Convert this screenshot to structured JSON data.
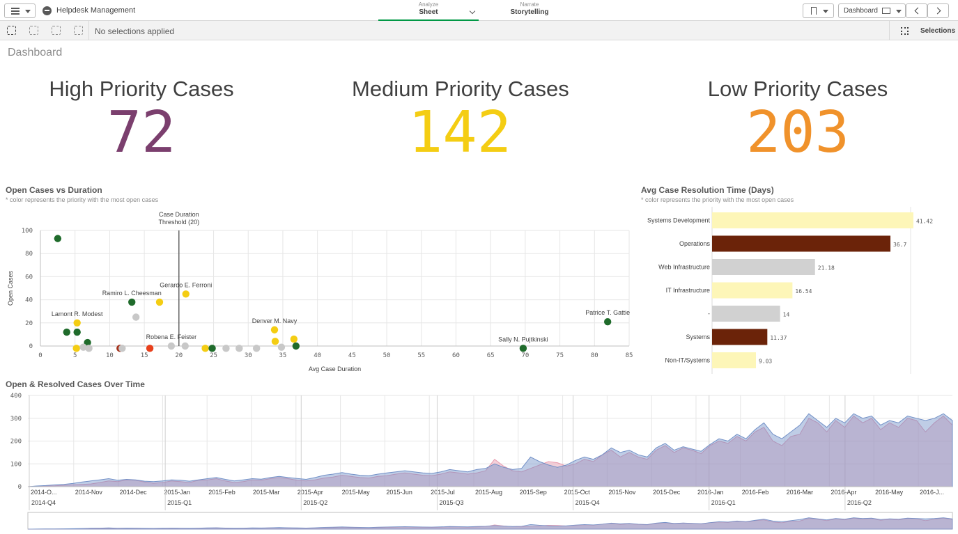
{
  "header": {
    "app_title": "Helpdesk Management",
    "tabs": [
      {
        "sub": "Analyze",
        "label": "Sheet"
      },
      {
        "sub": "Narrate",
        "label": "Storytelling"
      }
    ],
    "sheet_label": "Dashboard",
    "icons": [
      "hamburger-icon",
      "app-icon",
      "chevron-down-icon",
      "bookmark-icon",
      "screen-icon",
      "chevron-left-icon",
      "chevron-right-icon"
    ]
  },
  "selection_bar": {
    "status": "No selections applied",
    "selections_label": "Selections"
  },
  "sheet": {
    "title": "Dashboard"
  },
  "kpis": [
    {
      "title": "High Priority Cases",
      "value": "72",
      "color": "#7b3f6e"
    },
    {
      "title": "Medium Priority Cases",
      "value": "142",
      "color": "#f4cd13"
    },
    {
      "title": "Low Priority Cases",
      "value": "203",
      "color": "#f0922b"
    }
  ],
  "scatter_panel": {
    "title": "Open Cases vs Duration",
    "subtitle": "* color represents the priority with the most open cases"
  },
  "bar_panel": {
    "title": "Avg Case Resolution Time (Days)",
    "subtitle": "* color represents the priority with the most open cases"
  },
  "line_panel": {
    "title": "Open & Resolved Cases Over Time"
  },
  "chart_data": [
    {
      "type": "scatter",
      "xlabel": "Avg Case Duration",
      "ylabel": "Open Cases",
      "xlim": [
        0,
        85
      ],
      "ylim": [
        0,
        100
      ],
      "xticks": [
        0,
        5,
        10,
        15,
        20,
        25,
        30,
        35,
        40,
        45,
        50,
        55,
        60,
        65,
        70,
        75,
        80,
        85
      ],
      "yticks": [
        0,
        20,
        40,
        60,
        80,
        100
      ],
      "reference_line": {
        "x": 20,
        "label_lines": [
          "Case Duration",
          "Threshold (20)"
        ]
      },
      "points": [
        {
          "x": 2.5,
          "y": 93,
          "color": "#1f6b2b"
        },
        {
          "x": 3.8,
          "y": 12,
          "color": "#1f6b2b"
        },
        {
          "x": 5.3,
          "y": 20,
          "color": "#f4cd13",
          "label": "Lamont R. Modest"
        },
        {
          "x": 5.3,
          "y": 12,
          "color": "#1f6b2b"
        },
        {
          "x": 6.8,
          "y": 3,
          "color": "#1f6b2b"
        },
        {
          "x": 5.2,
          "y": -2,
          "color": "#f4cd13"
        },
        {
          "x": 6.2,
          "y": -1,
          "color": "#c8c8c8"
        },
        {
          "x": 7.0,
          "y": -2,
          "color": "#c8c8c8"
        },
        {
          "x": 11.5,
          "y": -2,
          "color": "#a5311a"
        },
        {
          "x": 11.8,
          "y": -2,
          "color": "#c8c8c8"
        },
        {
          "x": 13.2,
          "y": 38,
          "color": "#1f6b2b",
          "label": "Ramiro L. Cheesman"
        },
        {
          "x": 13.8,
          "y": 25,
          "color": "#c8c8c8"
        },
        {
          "x": 15.8,
          "y": -2,
          "color": "#e8401c"
        },
        {
          "x": 17.2,
          "y": 38,
          "color": "#f4cd13"
        },
        {
          "x": 18.9,
          "y": 0,
          "color": "#c8c8c8",
          "label": "Robena E. Feister"
        },
        {
          "x": 21.0,
          "y": 45,
          "color": "#f4cd13",
          "label": "Gerardo E. Ferroni"
        },
        {
          "x": 20.9,
          "y": 0,
          "color": "#c8c8c8"
        },
        {
          "x": 23.8,
          "y": -2,
          "color": "#f4cd13"
        },
        {
          "x": 24.8,
          "y": -2,
          "color": "#1f6b2b"
        },
        {
          "x": 26.8,
          "y": -2,
          "color": "#c8c8c8"
        },
        {
          "x": 28.7,
          "y": -2,
          "color": "#c8c8c8"
        },
        {
          "x": 31.2,
          "y": -2,
          "color": "#c8c8c8"
        },
        {
          "x": 33.8,
          "y": 14,
          "color": "#f4cd13",
          "label": "Denver M. Navy"
        },
        {
          "x": 33.9,
          "y": 4,
          "color": "#f4cd13"
        },
        {
          "x": 34.8,
          "y": -1,
          "color": "#c8c8c8"
        },
        {
          "x": 36.6,
          "y": 6,
          "color": "#f4cd13"
        },
        {
          "x": 36.9,
          "y": 0,
          "color": "#1f6b2b"
        },
        {
          "x": 69.7,
          "y": -2,
          "color": "#1f6b2b",
          "label": "Sally N. Pujtkinski"
        },
        {
          "x": 81.9,
          "y": 21,
          "color": "#1f6b2b",
          "label": "Patrice T. Gattie"
        }
      ]
    },
    {
      "type": "bar",
      "orientation": "horizontal",
      "categories": [
        "Systems Development",
        "Operations",
        "Web Infrastructure",
        "IT Infrastructure",
        "-",
        "Systems",
        "Non-IT/Systems"
      ],
      "values": [
        41.42,
        36.7,
        21.18,
        16.54,
        14,
        11.37,
        9.03
      ],
      "value_labels": [
        "41.42",
        "36.7",
        "21.18",
        "16.54",
        "14",
        "11.37",
        "9.03"
      ],
      "colors": [
        "#fdf6b8",
        "#6b2309",
        "#d1d1d1",
        "#fdf6b8",
        "#d1d1d1",
        "#6b2309",
        "#fdf6b8"
      ],
      "xlim": [
        0,
        42
      ]
    },
    {
      "type": "area",
      "ylim": [
        0,
        400
      ],
      "yticks": [
        0,
        100,
        200,
        300,
        400
      ],
      "xticks": [
        "2014-O...",
        "2014-Nov",
        "2014-Dec",
        "2015-Jan",
        "2015-Feb",
        "2015-Mar",
        "2015-Apr",
        "2015-May",
        "2015-Jun",
        "2015-Jul",
        "2015-Aug",
        "2015-Sep",
        "2015-Oct",
        "2015-Nov",
        "2015-Dec",
        "2016-Jan",
        "2016-Feb",
        "2016-Mar",
        "2016-Apr",
        "2016-May",
        "2016-J..."
      ],
      "quarters": [
        "2014-Q4",
        "2015-Q1",
        "2015-Q2",
        "2015-Q3",
        "2015-Q4",
        "2016-Q1",
        "2016-Q2"
      ],
      "series": [
        {
          "color": "#e89aae",
          "values": [
            0,
            2,
            3,
            4,
            6,
            8,
            10,
            12,
            18,
            25,
            22,
            30,
            28,
            20,
            15,
            18,
            25,
            22,
            18,
            28,
            30,
            35,
            25,
            18,
            22,
            30,
            28,
            35,
            40,
            35,
            28,
            25,
            30,
            38,
            42,
            50,
            45,
            40,
            38,
            45,
            48,
            55,
            60,
            55,
            50,
            48,
            55,
            65,
            60,
            55,
            60,
            70,
            120,
            90,
            70,
            65,
            80,
            95,
            110,
            105,
            90,
            100,
            120,
            110,
            140,
            160,
            130,
            150,
            130,
            120,
            160,
            180,
            150,
            170,
            160,
            145,
            180,
            200,
            190,
            220,
            200,
            240,
            260,
            200,
            180,
            220,
            230,
            300,
            280,
            240,
            290,
            260,
            310,
            280,
            300,
            250,
            280,
            260,
            300,
            290,
            240,
            280,
            310,
            270
          ]
        },
        {
          "color": "#7290c7",
          "values": [
            0,
            3,
            5,
            8,
            10,
            14,
            20,
            25,
            30,
            35,
            28,
            32,
            30,
            24,
            22,
            25,
            30,
            28,
            24,
            30,
            35,
            40,
            32,
            25,
            30,
            35,
            33,
            40,
            45,
            40,
            36,
            32,
            40,
            50,
            55,
            62,
            55,
            50,
            48,
            55,
            60,
            65,
            70,
            65,
            60,
            58,
            65,
            75,
            70,
            65,
            75,
            80,
            100,
            85,
            75,
            80,
            130,
            110,
            95,
            85,
            95,
            115,
            130,
            120,
            140,
            170,
            150,
            160,
            140,
            130,
            170,
            190,
            160,
            175,
            165,
            155,
            185,
            210,
            200,
            230,
            210,
            250,
            280,
            230,
            210,
            240,
            270,
            320,
            290,
            260,
            300,
            280,
            320,
            300,
            310,
            270,
            290,
            280,
            310,
            300,
            290,
            300,
            320,
            290
          ]
        }
      ]
    }
  ]
}
